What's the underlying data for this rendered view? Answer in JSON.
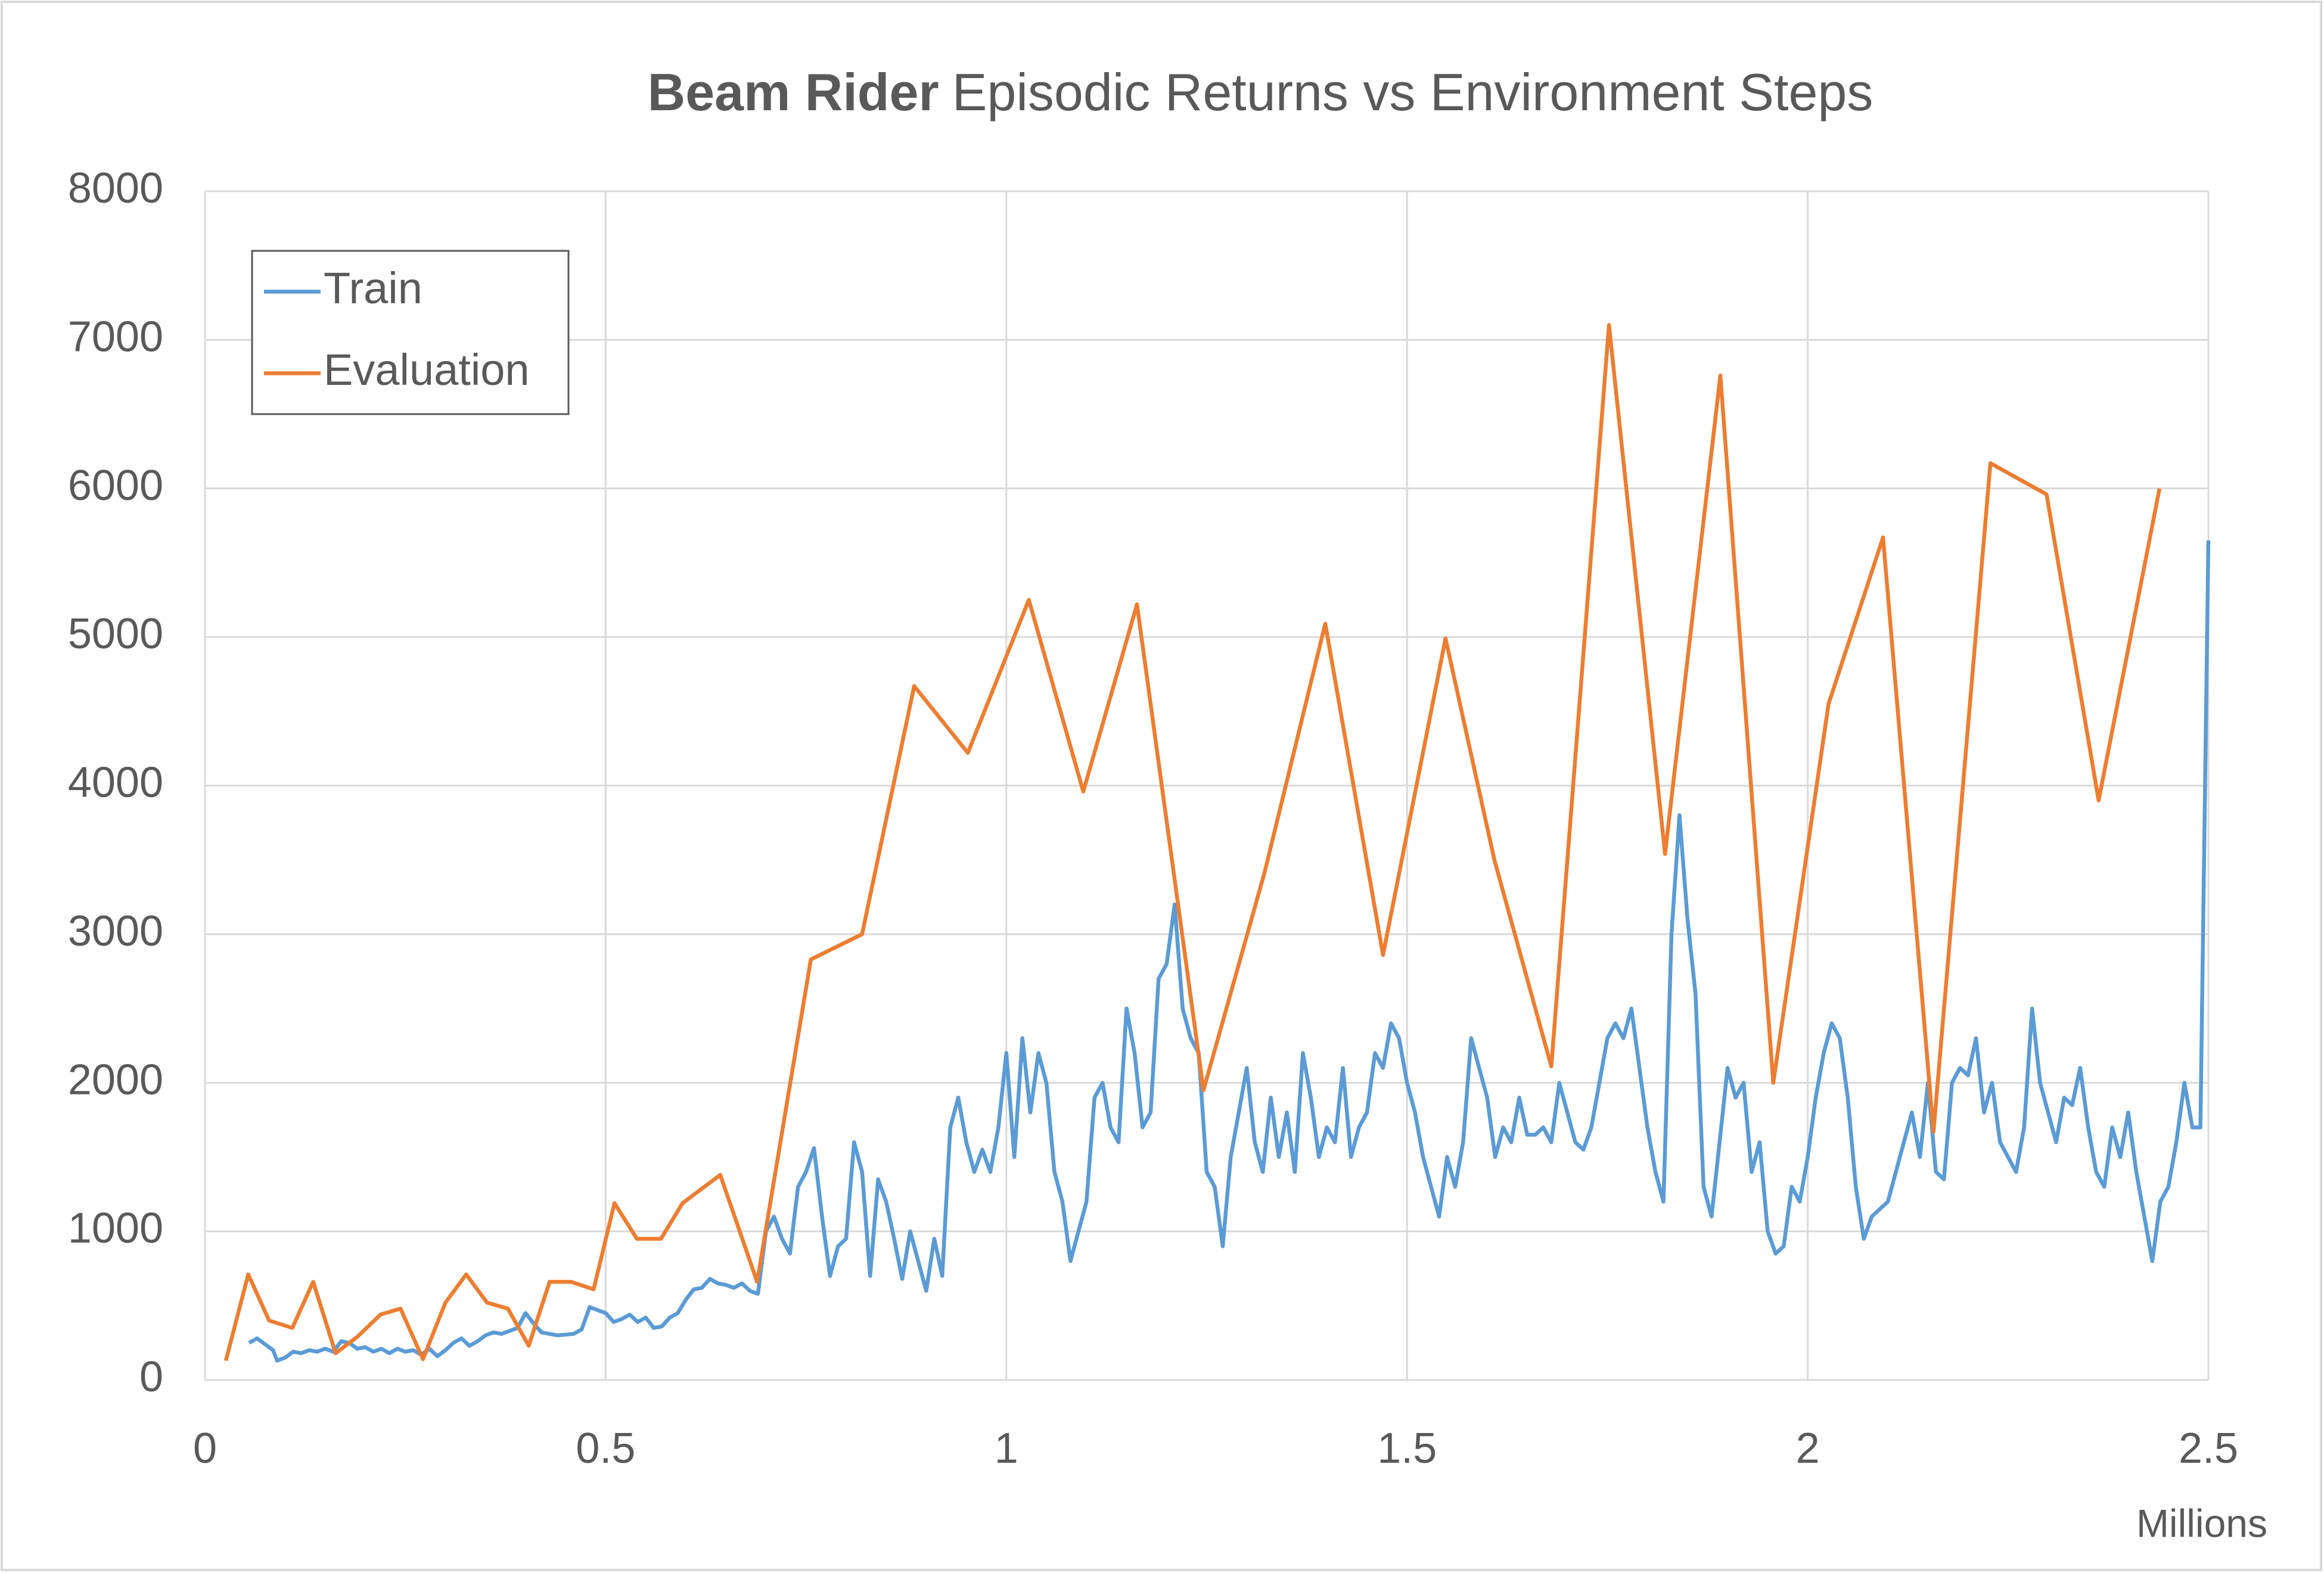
{
  "chart_data": {
    "type": "line",
    "title": [
      "Beam Rider",
      "Episodic Returns vs Environment Steps"
    ],
    "x_unit_label": "Millions",
    "xlim": [
      0,
      2.5
    ],
    "xticks": [
      0,
      0.5,
      1,
      1.5,
      2,
      2.5
    ],
    "ylim": [
      0,
      8000
    ],
    "yticks": [
      0,
      1000,
      2000,
      3000,
      4000,
      5000,
      6000,
      7000,
      8000
    ],
    "grid": true,
    "legend": "upper left",
    "series": [
      {
        "name": "Train",
        "color": "#5b9bd5",
        "x": [
          0.055,
          0.065,
          0.075,
          0.085,
          0.09,
          0.1,
          0.11,
          0.12,
          0.13,
          0.14,
          0.15,
          0.16,
          0.17,
          0.18,
          0.19,
          0.2,
          0.21,
          0.22,
          0.23,
          0.24,
          0.25,
          0.26,
          0.27,
          0.28,
          0.29,
          0.3,
          0.31,
          0.32,
          0.33,
          0.34,
          0.35,
          0.36,
          0.37,
          0.38,
          0.39,
          0.4,
          0.41,
          0.42,
          0.44,
          0.46,
          0.47,
          0.48,
          0.49,
          0.5,
          0.51,
          0.52,
          0.53,
          0.54,
          0.55,
          0.56,
          0.57,
          0.58,
          0.59,
          0.6,
          0.61,
          0.62,
          0.63,
          0.64,
          0.65,
          0.66,
          0.67,
          0.68,
          0.69,
          0.7,
          0.71,
          0.72,
          0.73,
          0.74,
          0.75,
          0.76,
          0.77,
          0.78,
          0.79,
          0.8,
          0.81,
          0.82,
          0.83,
          0.84,
          0.85,
          0.86,
          0.87,
          0.88,
          0.89,
          0.9,
          0.91,
          0.92,
          0.93,
          0.94,
          0.95,
          0.96,
          0.97,
          0.98,
          0.99,
          1.0,
          1.01,
          1.02,
          1.03,
          1.04,
          1.05,
          1.06,
          1.07,
          1.08,
          1.09,
          1.1,
          1.11,
          1.12,
          1.13,
          1.14,
          1.15,
          1.16,
          1.17,
          1.18,
          1.19,
          1.2,
          1.21,
          1.22,
          1.23,
          1.24,
          1.25,
          1.26,
          1.27,
          1.28,
          1.29,
          1.3,
          1.31,
          1.32,
          1.33,
          1.34,
          1.35,
          1.36,
          1.37,
          1.38,
          1.39,
          1.4,
          1.41,
          1.42,
          1.43,
          1.44,
          1.45,
          1.46,
          1.47,
          1.48,
          1.49,
          1.5,
          1.51,
          1.52,
          1.53,
          1.54,
          1.55,
          1.56,
          1.57,
          1.58,
          1.59,
          1.6,
          1.61,
          1.62,
          1.63,
          1.64,
          1.65,
          1.66,
          1.67,
          1.68,
          1.69,
          1.7,
          1.71,
          1.72,
          1.73,
          1.74,
          1.75,
          1.76,
          1.77,
          1.78,
          1.79,
          1.8,
          1.81,
          1.82,
          1.83,
          1.84,
          1.85,
          1.86,
          1.87,
          1.88,
          1.89,
          1.9,
          1.91,
          1.92,
          1.93,
          1.94,
          1.95,
          1.96,
          1.97,
          1.98,
          1.99,
          2.0,
          2.01,
          2.02,
          2.03,
          2.04,
          2.05,
          2.06,
          2.07,
          2.08,
          2.09,
          2.1,
          2.11,
          2.12,
          2.13,
          2.14,
          2.15,
          2.16,
          2.17,
          2.18,
          2.19,
          2.2,
          2.21,
          2.22,
          2.23,
          2.24,
          2.25,
          2.26,
          2.27,
          2.28,
          2.29,
          2.3,
          2.31,
          2.32,
          2.33,
          2.34,
          2.35,
          2.36,
          2.37,
          2.38,
          2.39,
          2.4,
          2.41,
          2.42,
          2.43,
          2.44,
          2.45,
          2.46,
          2.47,
          2.48,
          2.49,
          2.5
        ],
        "values": [
          250,
          280,
          240,
          200,
          130,
          150,
          190,
          180,
          200,
          190,
          210,
          190,
          260,
          250,
          210,
          220,
          190,
          210,
          180,
          210,
          190,
          200,
          170,
          210,
          160,
          200,
          250,
          280,
          230,
          260,
          300,
          320,
          310,
          330,
          350,
          450,
          380,
          320,
          300,
          310,
          340,
          490,
          470,
          450,
          390,
          410,
          440,
          390,
          420,
          350,
          360,
          420,
          450,
          540,
          610,
          620,
          680,
          650,
          640,
          620,
          650,
          600,
          580,
          1000,
          1100,
          950,
          850,
          1300,
          1400,
          1560,
          1100,
          700,
          900,
          950,
          1600,
          1400,
          700,
          1350,
          1200,
          950,
          680,
          1000,
          800,
          600,
          950,
          700,
          1700,
          1900,
          1600,
          1400,
          1550,
          1400,
          1700,
          2200,
          1500,
          2300,
          1800,
          2200,
          2000,
          1400,
          1200,
          800,
          1000,
          1200,
          1900,
          2000,
          1700,
          1600,
          2500,
          2200,
          1700,
          1800,
          2700,
          2800,
          3200,
          2500,
          2300,
          2200,
          1400,
          1300,
          900,
          1500,
          1800,
          2100,
          1600,
          1400,
          1900,
          1500,
          1800,
          1400,
          2200,
          1900,
          1500,
          1700,
          1600,
          2100,
          1500,
          1700,
          1800,
          2200,
          2100,
          2400,
          2300,
          2000,
          1800,
          1500,
          1300,
          1100,
          1500,
          1300,
          1600,
          2300,
          2100,
          1900,
          1500,
          1700,
          1600,
          1900,
          1650,
          1650,
          1700,
          1600,
          2000,
          1800,
          1600,
          1550,
          1700,
          2000,
          2300,
          2400,
          2300,
          2500,
          2100,
          1700,
          1400,
          1200,
          3000,
          3800,
          3100,
          2600,
          1300,
          1100,
          1600,
          2100,
          1900,
          2000,
          1400,
          1600,
          1000,
          850,
          900,
          1300,
          1200,
          1500,
          1900,
          2200,
          2400,
          2300,
          1900,
          1300,
          950,
          1100,
          1150,
          1200,
          1400,
          1600,
          1800,
          1500,
          2000,
          1400,
          1350,
          2000,
          2100,
          2050,
          2300,
          1800,
          2000,
          1600,
          1500,
          1400,
          1700,
          2500,
          2000,
          1800,
          1600,
          1900,
          1850,
          2100,
          1700,
          1400,
          1300,
          1700,
          1500,
          1800,
          1400,
          1100,
          800,
          1200,
          1300,
          1600,
          2000,
          1700,
          1700,
          5650
        ]
      },
      {
        "name": "Evaluation",
        "color": "#ed7d31",
        "x": [
          0.026,
          0.054,
          0.08,
          0.109,
          0.135,
          0.163,
          0.19,
          0.219,
          0.244,
          0.272,
          0.3,
          0.326,
          0.352,
          0.378,
          0.404,
          0.43,
          0.457,
          0.485,
          0.511,
          0.539,
          0.569,
          0.596,
          0.643,
          0.689,
          0.756,
          0.82,
          0.885,
          0.952,
          1.028,
          1.096,
          1.163,
          1.246,
          1.322,
          1.398,
          1.47,
          1.548,
          1.609,
          1.68,
          1.752,
          1.822,
          1.891,
          1.957,
          2.026,
          2.094,
          2.157,
          2.228,
          2.298,
          2.363,
          2.439
        ],
        "values": [
          130,
          710,
          400,
          350,
          660,
          180,
          290,
          440,
          480,
          140,
          520,
          710,
          520,
          480,
          230,
          660,
          660,
          610,
          1190,
          950,
          950,
          1190,
          1380,
          660,
          2830,
          3000,
          4670,
          4220,
          5250,
          3960,
          5220,
          1950,
          3410,
          5090,
          2860,
          4990,
          3500,
          2110,
          7100,
          3540,
          6760,
          2000,
          4550,
          5670,
          1670,
          6170,
          5960,
          3900,
          6000
        ]
      }
    ]
  }
}
